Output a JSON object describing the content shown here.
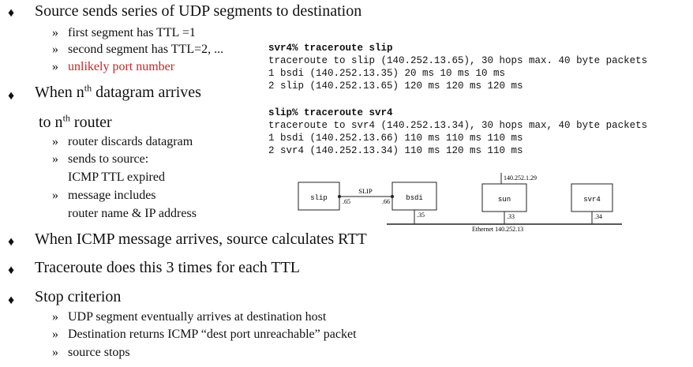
{
  "bullets": {
    "b1": "Source sends series of UDP segments to destination",
    "b1_subs": [
      "first segment has TTL =1",
      "second segment has TTL=2, ...",
      "unlikely port number"
    ],
    "b2_line1_pre": "When n",
    "b2_line1_sup": "th",
    "b2_line1_post": " datagram arrives",
    "b2_line2_pre": "to n",
    "b2_line2_sup": "th",
    "b2_line2_post": " router",
    "b2_subs": [
      "router discards datagram",
      "sends to source:",
      "ICMP TTL expired",
      "message includes",
      "router name & IP address"
    ],
    "b3": "When ICMP message arrives, source calculates RTT",
    "b4": "Traceroute does this 3 times for each TTL",
    "b5": "Stop criterion",
    "b5_subs": [
      "UDP segment eventually arrives at destination host",
      "Destination returns ICMP “dest port unreachable” packet",
      "source stops"
    ]
  },
  "terminal": {
    "cmd1": "svr4% traceroute slip",
    "out1": [
      "traceroute to slip (140.252.13.65), 30 hops max. 40 byte packets",
      "1 bsdi (140.252.13.35) 20 ms 10 ms 10 ms",
      "2 slip (140.252.13.65) 120 ms 120 ms 120 ms"
    ],
    "cmd2": "slip% traceroute svr4",
    "out2": [
      "traceroute to svr4 (140.252.13.34), 30 hops max, 40 byte packets",
      "1 bsdi (140.252.13.66) 110 ms 110 ms 110 ms",
      "2 svr4 (140.252.13.34) 110 ms 120 ms 110 ms"
    ]
  },
  "diagram": {
    "hosts": [
      "slip",
      "bsdi",
      "sun",
      "svr4"
    ],
    "link_label": "SLIP",
    "slip_addr": ".65",
    "bsdi_addr_slip": ".66",
    "bsdi_addr": ".35",
    "sun_addr": ".33",
    "svr4_addr": ".34",
    "sun_top_addr": "140.252.1.29",
    "ethernet_label": "Ethernet 140.252.13"
  },
  "symbols": {
    "bullet": "♦",
    "sub_bullet": "»"
  }
}
